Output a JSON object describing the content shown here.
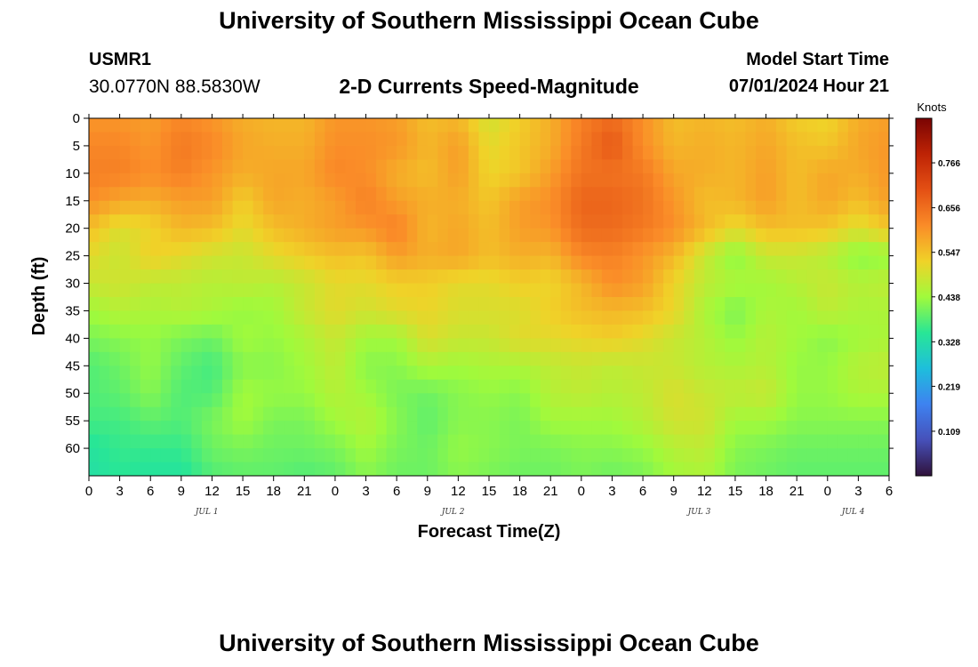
{
  "header": {
    "title": "University of Southern Mississippi Ocean Cube",
    "station": "USMR1",
    "coords": "30.0770N  88.5830W",
    "subtitle": "2-D Currents Speed-Magnitude",
    "model_start_label": "Model Start Time",
    "model_start_value": "07/01/2024 Hour 21"
  },
  "footer": {
    "title": "University of Southern Mississippi Ocean Cube"
  },
  "chart_data": {
    "type": "heatmap",
    "xlabel": "Forecast Time(Z)",
    "ylabel": "Depth (ft)",
    "x_tick_labels": [
      "0",
      "3",
      "6",
      "9",
      "12",
      "15",
      "18",
      "21",
      "0",
      "3",
      "6",
      "9",
      "12",
      "15",
      "18",
      "21",
      "0",
      "3",
      "6",
      "9",
      "12",
      "15",
      "18",
      "21",
      "0",
      "3",
      "6"
    ],
    "date_labels": [
      {
        "label": "JUL 1",
        "hour": 11.5
      },
      {
        "label": "JUL 2",
        "hour": 35.5
      },
      {
        "label": "JUL 3",
        "hour": 59.5
      },
      {
        "label": "JUL 4",
        "hour": 74.5
      }
    ],
    "xlim_hours": [
      0,
      78
    ],
    "y_ticks": [
      0,
      5,
      10,
      15,
      20,
      25,
      30,
      35,
      40,
      45,
      50,
      55,
      60
    ],
    "ylim": [
      0,
      65
    ],
    "y_inverted": true,
    "colorbar": {
      "unit": "Knots",
      "ticks": [
        0.109,
        0.219,
        0.328,
        0.438,
        0.547,
        0.656,
        0.766
      ],
      "range": [
        0.0,
        0.875
      ],
      "colormap": "turbo"
    },
    "grid_hours": [
      0,
      3,
      6,
      9,
      12,
      15,
      18,
      21,
      24,
      27,
      30,
      33,
      36,
      39,
      42,
      45,
      48,
      51,
      54,
      57,
      60,
      63,
      66,
      69,
      72,
      75,
      78
    ],
    "grid_depths": [
      0,
      5,
      10,
      15,
      20,
      25,
      30,
      35,
      40,
      45,
      50,
      55,
      60,
      65
    ],
    "speed_knots": [
      [
        0.6,
        0.6,
        0.59,
        0.62,
        0.6,
        0.57,
        0.56,
        0.56,
        0.6,
        0.6,
        0.59,
        0.55,
        0.56,
        0.49,
        0.53,
        0.57,
        0.63,
        0.66,
        0.61,
        0.55,
        0.56,
        0.55,
        0.57,
        0.53,
        0.52,
        0.57,
        0.59
      ],
      [
        0.62,
        0.62,
        0.6,
        0.64,
        0.62,
        0.58,
        0.57,
        0.57,
        0.61,
        0.61,
        0.6,
        0.56,
        0.59,
        0.51,
        0.54,
        0.57,
        0.64,
        0.69,
        0.61,
        0.56,
        0.57,
        0.56,
        0.58,
        0.55,
        0.54,
        0.58,
        0.6
      ],
      [
        0.63,
        0.63,
        0.61,
        0.63,
        0.6,
        0.57,
        0.58,
        0.58,
        0.62,
        0.61,
        0.57,
        0.55,
        0.59,
        0.52,
        0.54,
        0.59,
        0.65,
        0.65,
        0.64,
        0.58,
        0.57,
        0.56,
        0.59,
        0.55,
        0.58,
        0.57,
        0.6
      ],
      [
        0.61,
        0.58,
        0.57,
        0.59,
        0.59,
        0.53,
        0.58,
        0.57,
        0.59,
        0.63,
        0.59,
        0.57,
        0.57,
        0.54,
        0.59,
        0.61,
        0.67,
        0.67,
        0.65,
        0.6,
        0.55,
        0.56,
        0.59,
        0.55,
        0.58,
        0.55,
        0.59
      ],
      [
        0.55,
        0.5,
        0.52,
        0.56,
        0.55,
        0.51,
        0.55,
        0.57,
        0.59,
        0.6,
        0.63,
        0.56,
        0.58,
        0.55,
        0.59,
        0.6,
        0.66,
        0.66,
        0.64,
        0.61,
        0.56,
        0.51,
        0.55,
        0.55,
        0.54,
        0.5,
        0.54
      ],
      [
        0.51,
        0.48,
        0.53,
        0.51,
        0.49,
        0.48,
        0.51,
        0.53,
        0.55,
        0.54,
        0.59,
        0.57,
        0.58,
        0.55,
        0.57,
        0.56,
        0.62,
        0.63,
        0.6,
        0.56,
        0.48,
        0.42,
        0.48,
        0.48,
        0.46,
        0.42,
        0.43
      ],
      [
        0.48,
        0.49,
        0.47,
        0.47,
        0.46,
        0.47,
        0.46,
        0.48,
        0.51,
        0.51,
        0.53,
        0.53,
        0.51,
        0.51,
        0.53,
        0.52,
        0.56,
        0.61,
        0.59,
        0.52,
        0.47,
        0.45,
        0.44,
        0.46,
        0.48,
        0.46,
        0.47
      ],
      [
        0.44,
        0.46,
        0.45,
        0.46,
        0.45,
        0.43,
        0.44,
        0.48,
        0.51,
        0.49,
        0.51,
        0.52,
        0.5,
        0.5,
        0.5,
        0.53,
        0.55,
        0.56,
        0.55,
        0.52,
        0.45,
        0.41,
        0.45,
        0.44,
        0.47,
        0.45,
        0.45
      ],
      [
        0.41,
        0.42,
        0.43,
        0.41,
        0.4,
        0.44,
        0.43,
        0.45,
        0.48,
        0.44,
        0.44,
        0.5,
        0.48,
        0.48,
        0.51,
        0.51,
        0.52,
        0.53,
        0.51,
        0.48,
        0.46,
        0.43,
        0.46,
        0.44,
        0.42,
        0.44,
        0.45
      ],
      [
        0.38,
        0.4,
        0.43,
        0.39,
        0.37,
        0.42,
        0.42,
        0.44,
        0.47,
        0.42,
        0.42,
        0.45,
        0.44,
        0.45,
        0.45,
        0.47,
        0.48,
        0.47,
        0.48,
        0.48,
        0.46,
        0.45,
        0.46,
        0.43,
        0.43,
        0.46,
        0.47
      ],
      [
        0.38,
        0.39,
        0.42,
        0.38,
        0.38,
        0.44,
        0.43,
        0.43,
        0.46,
        0.44,
        0.41,
        0.4,
        0.42,
        0.43,
        0.42,
        0.46,
        0.47,
        0.46,
        0.47,
        0.5,
        0.48,
        0.47,
        0.48,
        0.43,
        0.43,
        0.45,
        0.45
      ],
      [
        0.37,
        0.37,
        0.39,
        0.38,
        0.41,
        0.44,
        0.41,
        0.41,
        0.44,
        0.46,
        0.42,
        0.39,
        0.42,
        0.42,
        0.41,
        0.44,
        0.44,
        0.44,
        0.46,
        0.49,
        0.49,
        0.44,
        0.44,
        0.42,
        0.42,
        0.42,
        0.42
      ],
      [
        0.34,
        0.36,
        0.36,
        0.36,
        0.4,
        0.41,
        0.4,
        0.4,
        0.41,
        0.44,
        0.41,
        0.4,
        0.43,
        0.42,
        0.41,
        0.41,
        0.42,
        0.42,
        0.43,
        0.46,
        0.47,
        0.42,
        0.41,
        0.4,
        0.4,
        0.4,
        0.4
      ],
      [
        0.33,
        0.35,
        0.34,
        0.34,
        0.38,
        0.39,
        0.39,
        0.38,
        0.39,
        0.42,
        0.4,
        0.4,
        0.42,
        0.41,
        0.4,
        0.4,
        0.41,
        0.4,
        0.41,
        0.44,
        0.45,
        0.41,
        0.4,
        0.39,
        0.39,
        0.39,
        0.39
      ]
    ]
  }
}
